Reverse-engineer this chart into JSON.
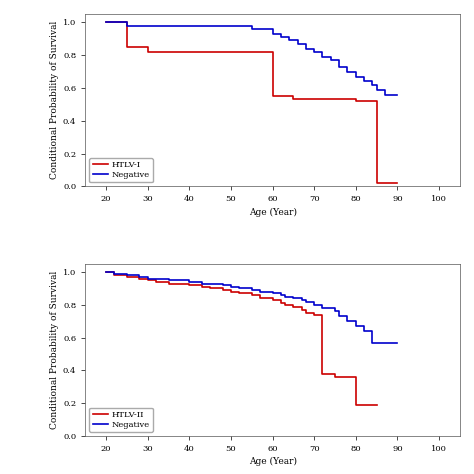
{
  "top_panel": {
    "red_steps": [
      [
        20,
        1.0
      ],
      [
        25,
        1.0
      ],
      [
        25,
        0.85
      ],
      [
        30,
        0.85
      ],
      [
        30,
        0.82
      ],
      [
        55,
        0.82
      ],
      [
        55,
        0.82
      ],
      [
        60,
        0.82
      ],
      [
        60,
        0.55
      ],
      [
        65,
        0.55
      ],
      [
        65,
        0.53
      ],
      [
        70,
        0.53
      ],
      [
        70,
        0.53
      ],
      [
        75,
        0.53
      ],
      [
        80,
        0.53
      ],
      [
        80,
        0.52
      ],
      [
        85,
        0.52
      ],
      [
        85,
        0.02
      ],
      [
        90,
        0.02
      ]
    ],
    "blue_steps": [
      [
        20,
        1.0
      ],
      [
        20,
        1.0
      ],
      [
        25,
        1.0
      ],
      [
        25,
        0.98
      ],
      [
        30,
        0.98
      ],
      [
        55,
        0.98
      ],
      [
        55,
        0.96
      ],
      [
        60,
        0.96
      ],
      [
        60,
        0.93
      ],
      [
        62,
        0.93
      ],
      [
        62,
        0.91
      ],
      [
        64,
        0.91
      ],
      [
        64,
        0.89
      ],
      [
        66,
        0.89
      ],
      [
        66,
        0.87
      ],
      [
        68,
        0.87
      ],
      [
        68,
        0.84
      ],
      [
        70,
        0.84
      ],
      [
        70,
        0.82
      ],
      [
        72,
        0.82
      ],
      [
        72,
        0.79
      ],
      [
        74,
        0.79
      ],
      [
        74,
        0.77
      ],
      [
        76,
        0.77
      ],
      [
        76,
        0.73
      ],
      [
        78,
        0.73
      ],
      [
        78,
        0.7
      ],
      [
        80,
        0.7
      ],
      [
        80,
        0.67
      ],
      [
        82,
        0.67
      ],
      [
        82,
        0.64
      ],
      [
        84,
        0.64
      ],
      [
        84,
        0.62
      ],
      [
        85,
        0.62
      ],
      [
        85,
        0.59
      ],
      [
        87,
        0.59
      ],
      [
        87,
        0.56
      ],
      [
        90,
        0.56
      ]
    ],
    "ylabel": "Conditional Probability of Survival",
    "xlabel": "Age (Year)",
    "legend1": "HTLV-I",
    "legend2": "Negative",
    "xlim": [
      15,
      105
    ],
    "ylim": [
      0.0,
      1.05
    ],
    "xticks": [
      20,
      30,
      40,
      50,
      60,
      70,
      80,
      90,
      100
    ],
    "yticks": [
      0.0,
      0.2,
      0.4,
      0.6,
      0.8,
      1.0
    ]
  },
  "bottom_panel": {
    "red_steps": [
      [
        20,
        1.0
      ],
      [
        22,
        1.0
      ],
      [
        22,
        0.98
      ],
      [
        25,
        0.98
      ],
      [
        25,
        0.97
      ],
      [
        28,
        0.97
      ],
      [
        28,
        0.96
      ],
      [
        30,
        0.96
      ],
      [
        30,
        0.95
      ],
      [
        32,
        0.95
      ],
      [
        32,
        0.94
      ],
      [
        35,
        0.94
      ],
      [
        35,
        0.93
      ],
      [
        40,
        0.93
      ],
      [
        40,
        0.92
      ],
      [
        43,
        0.92
      ],
      [
        43,
        0.91
      ],
      [
        45,
        0.91
      ],
      [
        45,
        0.9
      ],
      [
        48,
        0.9
      ],
      [
        48,
        0.89
      ],
      [
        50,
        0.89
      ],
      [
        50,
        0.88
      ],
      [
        52,
        0.88
      ],
      [
        52,
        0.87
      ],
      [
        55,
        0.87
      ],
      [
        55,
        0.86
      ],
      [
        57,
        0.86
      ],
      [
        57,
        0.84
      ],
      [
        60,
        0.84
      ],
      [
        60,
        0.83
      ],
      [
        62,
        0.83
      ],
      [
        62,
        0.81
      ],
      [
        63,
        0.81
      ],
      [
        63,
        0.8
      ],
      [
        65,
        0.8
      ],
      [
        65,
        0.79
      ],
      [
        67,
        0.79
      ],
      [
        67,
        0.77
      ],
      [
        68,
        0.77
      ],
      [
        68,
        0.75
      ],
      [
        70,
        0.75
      ],
      [
        70,
        0.74
      ],
      [
        72,
        0.74
      ],
      [
        72,
        0.38
      ],
      [
        75,
        0.38
      ],
      [
        75,
        0.36
      ],
      [
        80,
        0.36
      ],
      [
        80,
        0.19
      ],
      [
        85,
        0.19
      ],
      [
        85,
        0.19
      ]
    ],
    "blue_steps": [
      [
        20,
        1.0
      ],
      [
        22,
        1.0
      ],
      [
        22,
        0.99
      ],
      [
        25,
        0.99
      ],
      [
        25,
        0.98
      ],
      [
        28,
        0.98
      ],
      [
        28,
        0.97
      ],
      [
        30,
        0.97
      ],
      [
        30,
        0.96
      ],
      [
        32,
        0.96
      ],
      [
        32,
        0.96
      ],
      [
        35,
        0.96
      ],
      [
        35,
        0.95
      ],
      [
        40,
        0.95
      ],
      [
        40,
        0.94
      ],
      [
        43,
        0.94
      ],
      [
        43,
        0.93
      ],
      [
        45,
        0.93
      ],
      [
        45,
        0.93
      ],
      [
        48,
        0.93
      ],
      [
        48,
        0.92
      ],
      [
        50,
        0.92
      ],
      [
        50,
        0.91
      ],
      [
        52,
        0.91
      ],
      [
        52,
        0.9
      ],
      [
        55,
        0.9
      ],
      [
        55,
        0.89
      ],
      [
        57,
        0.89
      ],
      [
        57,
        0.88
      ],
      [
        60,
        0.88
      ],
      [
        60,
        0.87
      ],
      [
        62,
        0.87
      ],
      [
        62,
        0.86
      ],
      [
        63,
        0.86
      ],
      [
        63,
        0.85
      ],
      [
        65,
        0.85
      ],
      [
        65,
        0.84
      ],
      [
        67,
        0.84
      ],
      [
        67,
        0.83
      ],
      [
        68,
        0.83
      ],
      [
        68,
        0.82
      ],
      [
        70,
        0.82
      ],
      [
        70,
        0.8
      ],
      [
        72,
        0.8
      ],
      [
        72,
        0.78
      ],
      [
        75,
        0.78
      ],
      [
        75,
        0.76
      ],
      [
        76,
        0.76
      ],
      [
        76,
        0.73
      ],
      [
        78,
        0.73
      ],
      [
        78,
        0.7
      ],
      [
        80,
        0.7
      ],
      [
        80,
        0.67
      ],
      [
        82,
        0.67
      ],
      [
        82,
        0.64
      ],
      [
        84,
        0.64
      ],
      [
        84,
        0.57
      ],
      [
        90,
        0.57
      ]
    ],
    "ylabel": "Conditional Probability of Survival",
    "xlabel": "Age (Year)",
    "legend1": "HTLV-II",
    "legend2": "Negative",
    "xlim": [
      15,
      105
    ],
    "ylim": [
      0.0,
      1.05
    ],
    "xticks": [
      20,
      30,
      40,
      50,
      60,
      70,
      80,
      90,
      100
    ],
    "yticks": [
      0.0,
      0.2,
      0.4,
      0.6,
      0.8,
      1.0
    ]
  },
  "red_color": "#cc0000",
  "blue_color": "#0000cc",
  "linewidth": 1.2,
  "fontsize_label": 6.5,
  "fontsize_tick": 6,
  "fontsize_legend": 6
}
